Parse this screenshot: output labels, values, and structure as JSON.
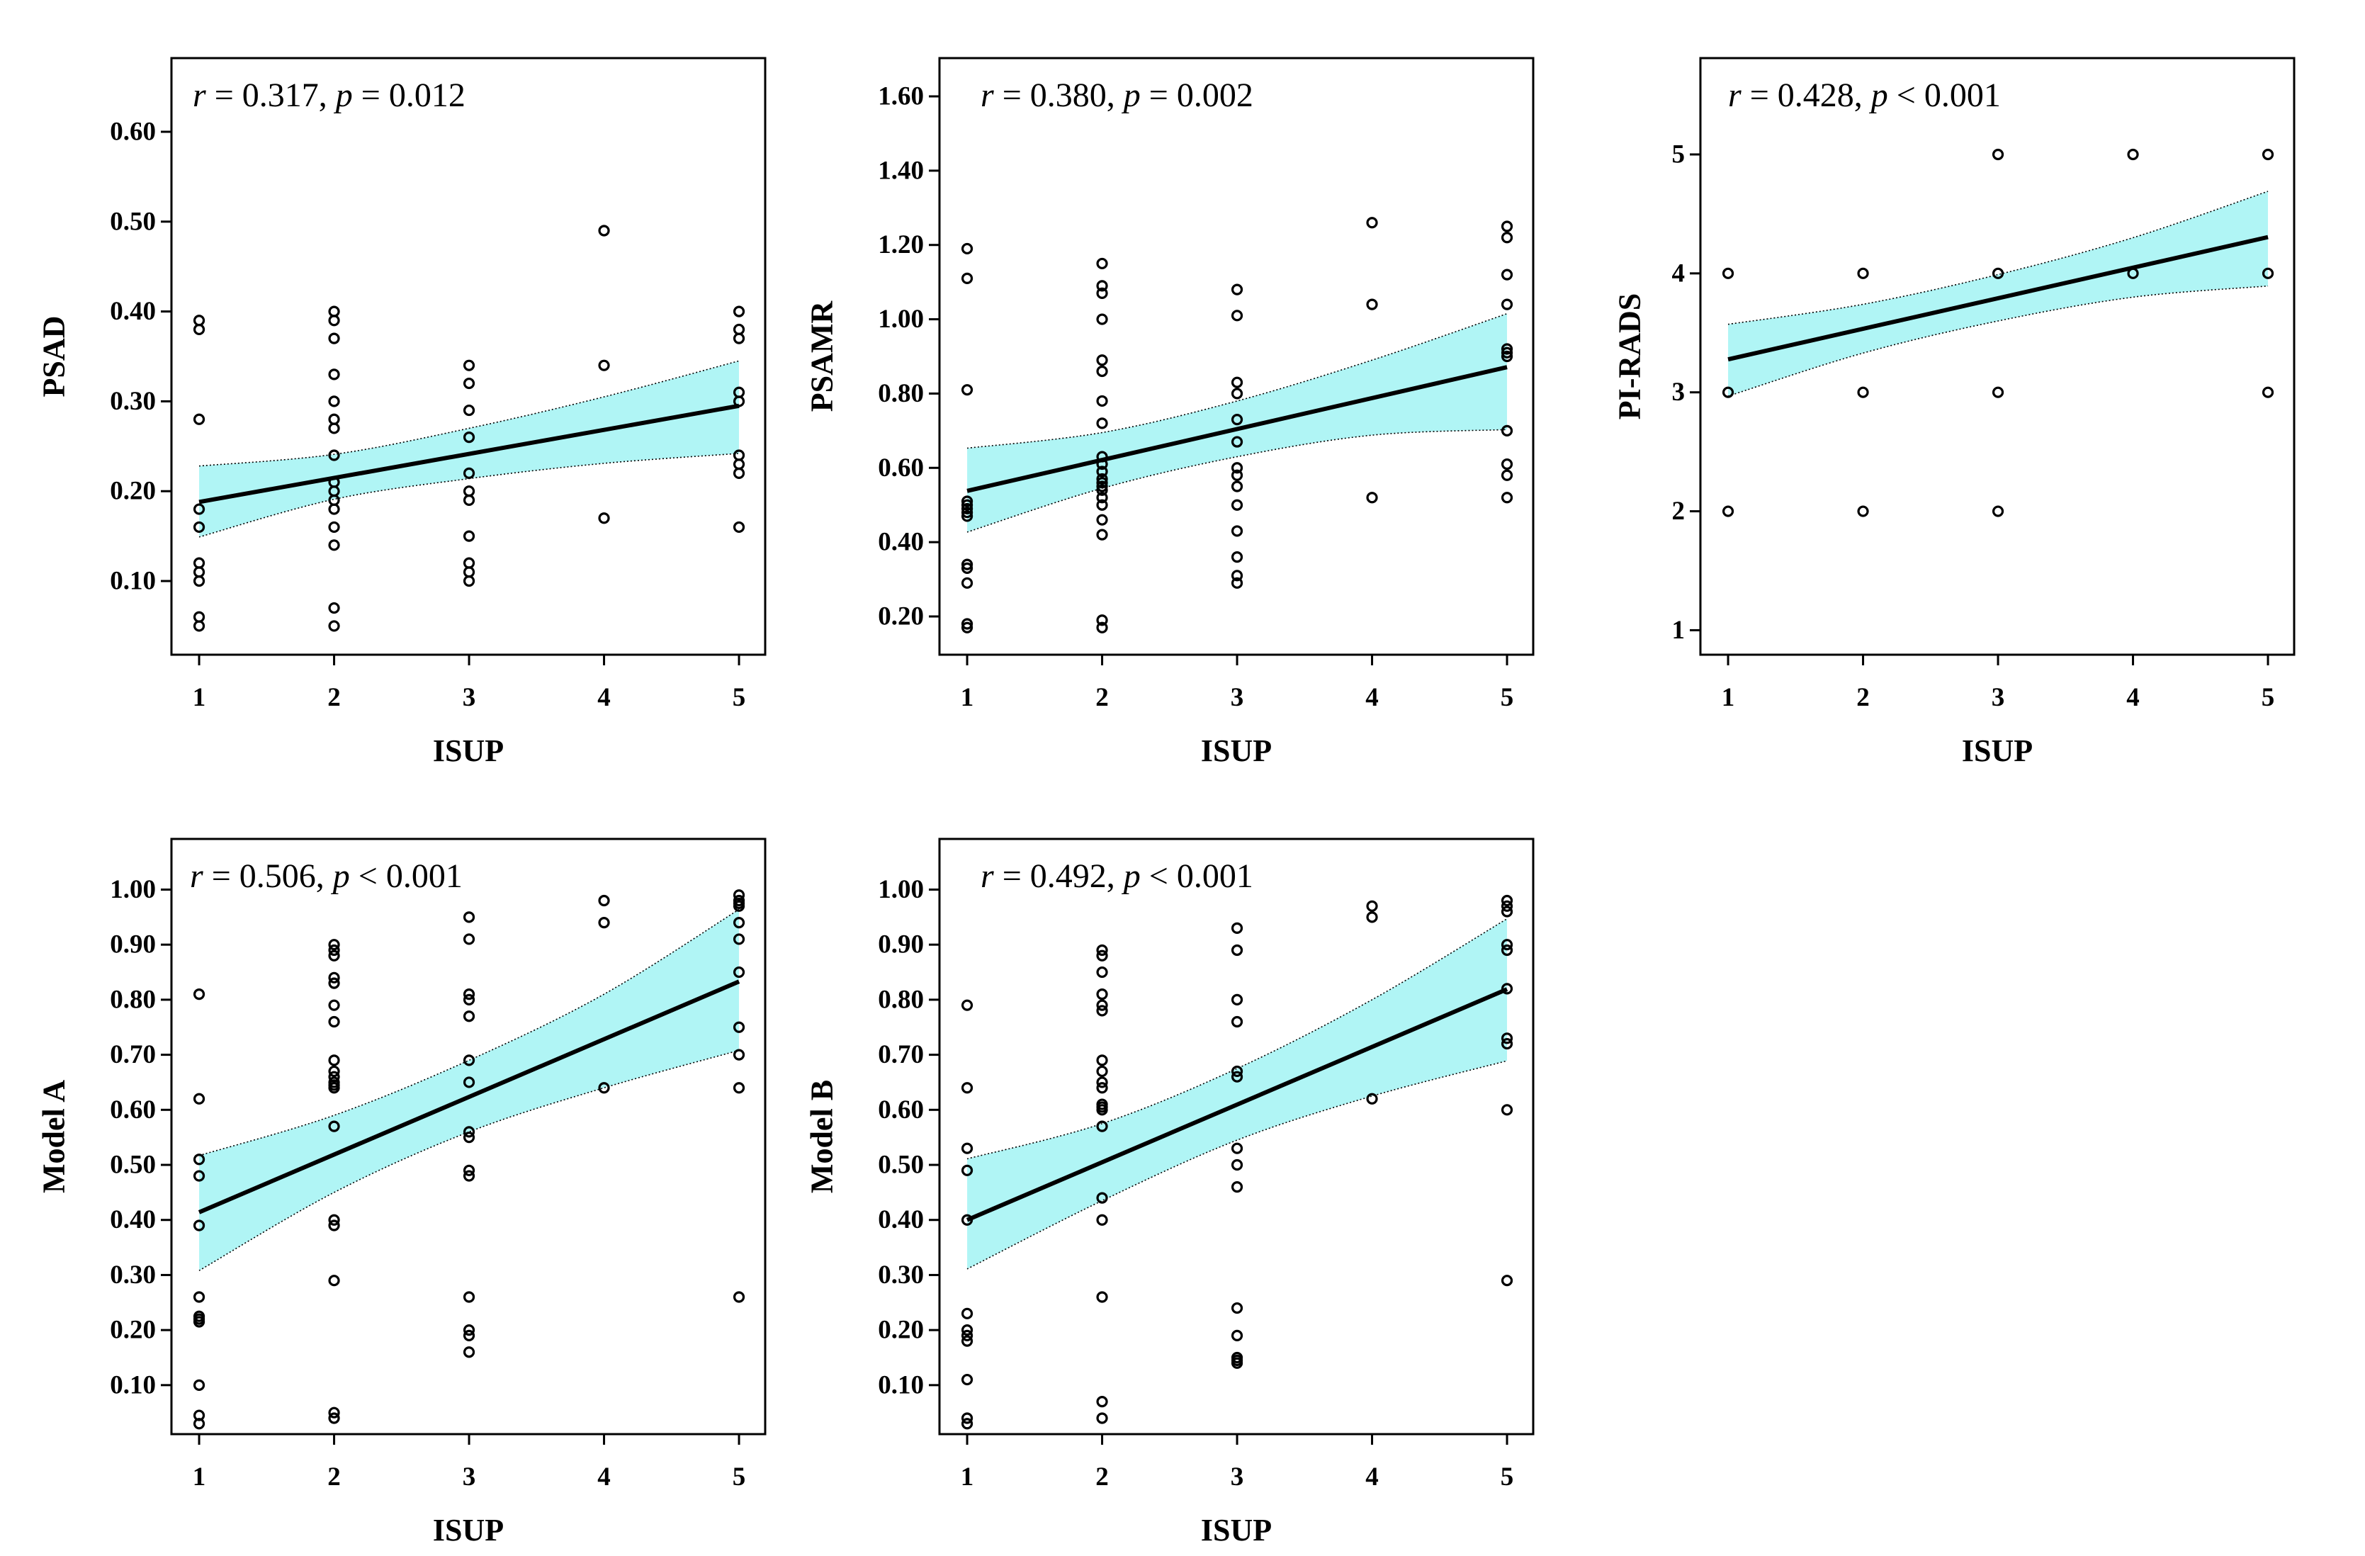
{
  "colors": {
    "ci_band": "#b0f5f5",
    "regression_line": "#000000",
    "points": "#000000",
    "axes": "#000000"
  },
  "chart_data": [
    {
      "type": "scatter",
      "xlabel": "ISUP",
      "ylabel": "PSAD",
      "annotation": {
        "r_symbol": "r",
        "r_part": " = 0.317, ",
        "p_symbol": "p",
        "p_part": " = 0.012"
      },
      "xlim": [
        0.795,
        5.194
      ],
      "xticks": [
        "1",
        "2",
        "3",
        "4",
        "5"
      ],
      "ylim": [
        0.018,
        0.682
      ],
      "yticks": [
        "0.10",
        "0.20",
        "0.30",
        "0.40",
        "0.50",
        "0.60"
      ],
      "grid": false,
      "points": [
        {
          "isup": 1,
          "values": [
            0.39,
            0.38,
            0.28,
            0.18,
            0.16,
            0.12,
            0.11,
            0.1,
            0.06,
            0.05
          ]
        },
        {
          "isup": 2,
          "values": [
            0.4,
            0.39,
            0.37,
            0.33,
            0.3,
            0.28,
            0.27,
            0.24,
            0.21,
            0.2,
            0.19,
            0.18,
            0.16,
            0.14,
            0.07,
            0.05
          ]
        },
        {
          "isup": 3,
          "values": [
            0.34,
            0.32,
            0.29,
            0.26,
            0.22,
            0.2,
            0.19,
            0.15,
            0.12,
            0.11,
            0.1
          ]
        },
        {
          "isup": 4,
          "values": [
            0.49,
            0.34,
            0.17
          ]
        },
        {
          "isup": 5,
          "values": [
            0.4,
            0.38,
            0.37,
            0.31,
            0.3,
            0.24,
            0.23,
            0.22,
            0.16
          ]
        }
      ],
      "regression": {
        "x": [
          1,
          5
        ],
        "y": [
          0.188,
          0.295
        ]
      },
      "confidence_band": {
        "x": [
          1,
          2,
          3,
          4,
          5
        ],
        "upper": [
          0.228,
          0.241,
          0.27,
          0.305,
          0.345
        ],
        "lower": [
          0.149,
          0.191,
          0.214,
          0.231,
          0.242
        ]
      }
    },
    {
      "type": "scatter",
      "xlabel": "ISUP",
      "ylabel": "PSAMR",
      "annotation": {
        "r_symbol": "r",
        "r_part": " = 0.380, ",
        "p_symbol": "p",
        "p_part": " = 0.002"
      },
      "xlim": [
        0.795,
        5.194
      ],
      "xticks": [
        "1",
        "2",
        "3",
        "4",
        "5"
      ],
      "ylim": [
        0.097,
        1.703
      ],
      "yticks": [
        "0.20",
        "0.40",
        "0.60",
        "0.80",
        "1.00",
        "1.20",
        "1.40",
        "1.60"
      ],
      "grid": false,
      "points": [
        {
          "isup": 1,
          "values": [
            1.19,
            1.11,
            0.81,
            0.51,
            0.5,
            0.49,
            0.48,
            0.47,
            0.34,
            0.33,
            0.29,
            0.18,
            0.17
          ]
        },
        {
          "isup": 2,
          "values": [
            1.15,
            1.09,
            1.07,
            1.0,
            0.89,
            0.86,
            0.78,
            0.72,
            0.63,
            0.61,
            0.59,
            0.57,
            0.56,
            0.55,
            0.54,
            0.52,
            0.5,
            0.46,
            0.42,
            0.19,
            0.17
          ]
        },
        {
          "isup": 3,
          "values": [
            1.08,
            1.01,
            0.83,
            0.8,
            0.73,
            0.67,
            0.6,
            0.58,
            0.55,
            0.5,
            0.43,
            0.36,
            0.31,
            0.29
          ]
        },
        {
          "isup": 4,
          "values": [
            1.26,
            1.04,
            0.52
          ]
        },
        {
          "isup": 5,
          "values": [
            1.25,
            1.22,
            1.12,
            1.04,
            0.92,
            0.91,
            0.9,
            0.7,
            0.61,
            0.58,
            0.52
          ]
        }
      ],
      "regression": {
        "x": [
          1,
          5
        ],
        "y": [
          0.538,
          0.871
        ]
      },
      "confidence_band": {
        "x": [
          1,
          2,
          3,
          4,
          5
        ],
        "upper": [
          0.653,
          0.695,
          0.78,
          0.89,
          1.015
        ],
        "lower": [
          0.427,
          0.545,
          0.63,
          0.688,
          0.703
        ]
      }
    },
    {
      "type": "scatter",
      "xlabel": "ISUP",
      "ylabel": "PI-RADS",
      "annotation": {
        "r_symbol": "r",
        "r_part": " = 0.428, ",
        "p_symbol": "p",
        "p_part": " < 0.001"
      },
      "xlim": [
        0.795,
        5.194
      ],
      "xticks": [
        "1",
        "2",
        "3",
        "4",
        "5"
      ],
      "ylim": [
        0.794,
        5.81
      ],
      "yticks": [
        "1",
        "2",
        "3",
        "4",
        "5"
      ],
      "grid": false,
      "points": [
        {
          "isup": 1,
          "values": [
            4,
            3,
            2
          ]
        },
        {
          "isup": 2,
          "values": [
            4,
            3,
            2
          ]
        },
        {
          "isup": 3,
          "values": [
            5,
            4,
            3,
            2
          ]
        },
        {
          "isup": 4,
          "values": [
            5,
            4
          ]
        },
        {
          "isup": 5,
          "values": [
            5,
            4,
            3
          ]
        }
      ],
      "regression": {
        "x": [
          1,
          5
        ],
        "y": [
          3.277,
          4.305
        ]
      },
      "confidence_band": {
        "x": [
          1,
          2,
          3,
          4,
          5
        ],
        "upper": [
          3.572,
          3.74,
          3.99,
          4.3,
          4.69
        ],
        "lower": [
          2.968,
          3.33,
          3.6,
          3.8,
          3.894
        ]
      }
    },
    {
      "type": "scatter",
      "xlabel": "ISUP",
      "ylabel": "Model A",
      "annotation": {
        "r_symbol": "r",
        "r_part": " = 0.506, ",
        "p_symbol": "p",
        "p_part": " < 0.001"
      },
      "xlim": [
        0.795,
        5.194
      ],
      "xticks": [
        "1",
        "2",
        "3",
        "4",
        "5"
      ],
      "ylim": [
        0.011,
        1.092
      ],
      "yticks": [
        "0.10",
        "0.20",
        "0.30",
        "0.40",
        "0.50",
        "0.60",
        "0.70",
        "0.80",
        "0.90",
        "1.00"
      ],
      "grid": false,
      "points": [
        {
          "isup": 1,
          "values": [
            0.81,
            0.62,
            0.51,
            0.48,
            0.39,
            0.26,
            0.225,
            0.22,
            0.215,
            0.1,
            0.045,
            0.03
          ]
        },
        {
          "isup": 2,
          "values": [
            0.9,
            0.89,
            0.88,
            0.84,
            0.83,
            0.79,
            0.76,
            0.69,
            0.67,
            0.66,
            0.65,
            0.645,
            0.64,
            0.57,
            0.4,
            0.39,
            0.29,
            0.05,
            0.04
          ]
        },
        {
          "isup": 3,
          "values": [
            0.95,
            0.91,
            0.81,
            0.8,
            0.77,
            0.69,
            0.65,
            0.56,
            0.55,
            0.49,
            0.48,
            0.26,
            0.2,
            0.19,
            0.16
          ]
        },
        {
          "isup": 4,
          "values": [
            0.98,
            0.94,
            0.64
          ]
        },
        {
          "isup": 5,
          "values": [
            0.99,
            0.98,
            0.975,
            0.97,
            0.94,
            0.91,
            0.85,
            0.75,
            0.7,
            0.64,
            0.26
          ]
        }
      ],
      "regression": {
        "x": [
          1,
          5
        ],
        "y": [
          0.414,
          0.833
        ]
      },
      "confidence_band": {
        "x": [
          1,
          2,
          3,
          4,
          5
        ],
        "upper": [
          0.517,
          0.59,
          0.69,
          0.81,
          0.964
        ],
        "lower": [
          0.308,
          0.45,
          0.56,
          0.64,
          0.708
        ]
      }
    },
    {
      "type": "scatter",
      "xlabel": "ISUP",
      "ylabel": "Model B",
      "annotation": {
        "r_symbol": "r",
        "r_part": " = 0.492, ",
        "p_symbol": "p",
        "p_part": " < 0.001"
      },
      "xlim": [
        0.795,
        5.194
      ],
      "xticks": [
        "1",
        "2",
        "3",
        "4",
        "5"
      ],
      "ylim": [
        0.011,
        1.092
      ],
      "yticks": [
        "0.10",
        "0.20",
        "0.30",
        "0.40",
        "0.50",
        "0.60",
        "0.70",
        "0.80",
        "0.90",
        "1.00"
      ],
      "grid": false,
      "points": [
        {
          "isup": 1,
          "values": [
            0.79,
            0.64,
            0.53,
            0.49,
            0.4,
            0.23,
            0.2,
            0.19,
            0.18,
            0.11,
            0.04,
            0.03
          ]
        },
        {
          "isup": 2,
          "values": [
            0.89,
            0.88,
            0.85,
            0.81,
            0.79,
            0.78,
            0.69,
            0.67,
            0.65,
            0.64,
            0.61,
            0.605,
            0.6,
            0.57,
            0.44,
            0.4,
            0.26,
            0.07,
            0.04
          ]
        },
        {
          "isup": 3,
          "values": [
            0.93,
            0.89,
            0.8,
            0.76,
            0.67,
            0.66,
            0.53,
            0.5,
            0.46,
            0.24,
            0.19,
            0.15,
            0.145,
            0.14
          ]
        },
        {
          "isup": 4,
          "values": [
            0.97,
            0.95,
            0.62
          ]
        },
        {
          "isup": 5,
          "values": [
            0.98,
            0.97,
            0.96,
            0.9,
            0.89,
            0.82,
            0.73,
            0.72,
            0.6,
            0.29
          ]
        }
      ],
      "regression": {
        "x": [
          1,
          5
        ],
        "y": [
          0.4,
          0.819
        ]
      },
      "confidence_band": {
        "x": [
          1,
          2,
          3,
          4,
          5
        ],
        "upper": [
          0.511,
          0.575,
          0.675,
          0.8,
          0.947
        ],
        "lower": [
          0.311,
          0.435,
          0.545,
          0.625,
          0.689
        ]
      }
    }
  ]
}
